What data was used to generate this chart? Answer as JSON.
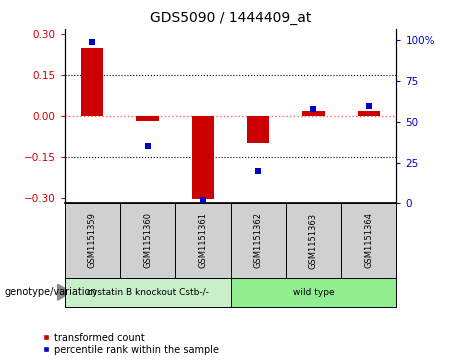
{
  "title": "GDS5090 / 1444409_at",
  "samples": [
    "GSM1151359",
    "GSM1151360",
    "GSM1151361",
    "GSM1151362",
    "GSM1151363",
    "GSM1151364"
  ],
  "red_values": [
    0.25,
    -0.018,
    -0.305,
    -0.1,
    0.018,
    0.018
  ],
  "blue_values": [
    99,
    35,
    2,
    20,
    58,
    60
  ],
  "ylim_left": [
    -0.32,
    0.32
  ],
  "ylim_right": [
    0,
    107
  ],
  "yticks_left": [
    -0.3,
    -0.15,
    0,
    0.15,
    0.3
  ],
  "yticks_right": [
    0,
    25,
    50,
    75,
    100
  ],
  "red_color": "#CC0000",
  "blue_color": "#0000CC",
  "zero_line_color": "#FF6666",
  "bar_width": 0.4,
  "legend_red": "transformed count",
  "legend_blue": "percentile rank within the sample",
  "genotype_label": "genotype/variation",
  "group1_label": "cystatin B knockout Cstb-/-",
  "group2_label": "wild type",
  "group1_color": "#c8f0c8",
  "group2_color": "#90ee90",
  "sample_box_color": "#d0d0d0",
  "n_group1": 3,
  "n_group2": 3
}
